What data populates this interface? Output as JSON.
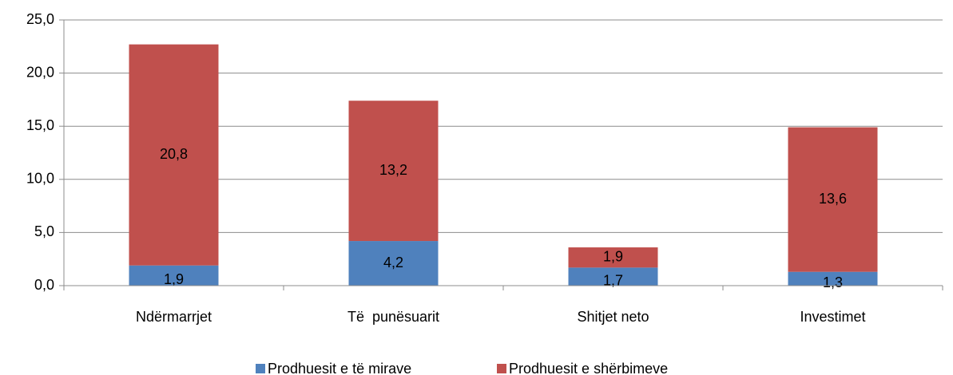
{
  "chart_data": {
    "type": "stacked-bar",
    "categories": [
      "Ndërmarrjet",
      "Të  punësuarit",
      "Shitjet neto",
      "Investimet"
    ],
    "series": [
      {
        "name": "Prodhuesit e të mirave",
        "color": "#4f81bd",
        "values": [
          1.9,
          4.2,
          1.7,
          1.3
        ],
        "value_labels": [
          "1,9",
          "4,2",
          "1,7",
          "1,3"
        ]
      },
      {
        "name": "Prodhuesit e shërbimeve",
        "color": "#c0504d",
        "values": [
          20.8,
          13.2,
          1.9,
          13.6
        ],
        "value_labels": [
          "20,8",
          "13,2",
          "1,9",
          "13,6"
        ]
      }
    ],
    "ylim": [
      0,
      25
    ],
    "yticks": [
      {
        "value": 0,
        "label": "0,0"
      },
      {
        "value": 5,
        "label": "5,0"
      },
      {
        "value": 10,
        "label": "10,0"
      },
      {
        "value": 15,
        "label": "15,0"
      },
      {
        "value": 20,
        "label": "20,0"
      },
      {
        "value": 25,
        "label": "25,0"
      }
    ],
    "grid": true,
    "legend": "bottom"
  }
}
